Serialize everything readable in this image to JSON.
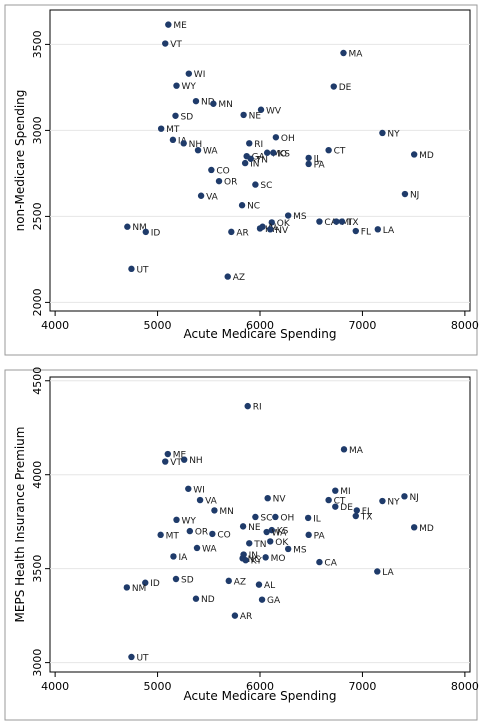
{
  "chart_data": [
    {
      "type": "scatter",
      "title": "",
      "xlabel": "Acute Medicare Spending",
      "ylabel": "non-Medicare Spending",
      "xlim": [
        3950,
        8050
      ],
      "ylim": [
        1950,
        3700
      ],
      "xticks": [
        4000,
        5000,
        6000,
        7000,
        8000
      ],
      "yticks": [
        2000,
        2500,
        3000,
        3500
      ],
      "grid": true,
      "marker_color": "#1f3b6a",
      "points": [
        {
          "label": "ME",
          "x": 5105,
          "y": 3615
        },
        {
          "label": "VT",
          "x": 5075,
          "y": 3505
        },
        {
          "label": "MA",
          "x": 6815,
          "y": 3450
        },
        {
          "label": "WI",
          "x": 5305,
          "y": 3330
        },
        {
          "label": "WY",
          "x": 5185,
          "y": 3260
        },
        {
          "label": "DE",
          "x": 6720,
          "y": 3255
        },
        {
          "label": "ND",
          "x": 5375,
          "y": 3170
        },
        {
          "label": "MN",
          "x": 5545,
          "y": 3155
        },
        {
          "label": "WV",
          "x": 6010,
          "y": 3120
        },
        {
          "label": "NE",
          "x": 5840,
          "y": 3090
        },
        {
          "label": "SD",
          "x": 5175,
          "y": 3085
        },
        {
          "label": "MT",
          "x": 5035,
          "y": 3010
        },
        {
          "label": "NY",
          "x": 7195,
          "y": 2985
        },
        {
          "label": "OH",
          "x": 6155,
          "y": 2960
        },
        {
          "label": "IA",
          "x": 5150,
          "y": 2945
        },
        {
          "label": "NH",
          "x": 5255,
          "y": 2925
        },
        {
          "label": "RI",
          "x": 5895,
          "y": 2925
        },
        {
          "label": "WA",
          "x": 5395,
          "y": 2885
        },
        {
          "label": "CT",
          "x": 6670,
          "y": 2885
        },
        {
          "label": "MD",
          "x": 7505,
          "y": 2860
        },
        {
          "label": "MO",
          "x": 6070,
          "y": 2870
        },
        {
          "label": "KS",
          "x": 6130,
          "y": 2870
        },
        {
          "label": "GA",
          "x": 5870,
          "y": 2850
        },
        {
          "label": "IL",
          "x": 6475,
          "y": 2840
        },
        {
          "label": "IN",
          "x": 5855,
          "y": 2810
        },
        {
          "label": "TN",
          "x": 5910,
          "y": 2835
        },
        {
          "label": "PA",
          "x": 6475,
          "y": 2805
        },
        {
          "label": "CO",
          "x": 5525,
          "y": 2770
        },
        {
          "label": "OR",
          "x": 5600,
          "y": 2705
        },
        {
          "label": "SC",
          "x": 5955,
          "y": 2685
        },
        {
          "label": "VA",
          "x": 5425,
          "y": 2620
        },
        {
          "label": "NJ",
          "x": 7415,
          "y": 2630
        },
        {
          "label": "NC",
          "x": 5825,
          "y": 2565
        },
        {
          "label": "MS",
          "x": 6275,
          "y": 2505
        },
        {
          "label": "CA",
          "x": 6580,
          "y": 2470
        },
        {
          "label": "MI",
          "x": 6745,
          "y": 2470
        },
        {
          "label": "TX",
          "x": 6800,
          "y": 2470
        },
        {
          "label": "OK",
          "x": 6115,
          "y": 2465
        },
        {
          "label": "AL",
          "x": 6025,
          "y": 2440
        },
        {
          "label": "KY",
          "x": 6000,
          "y": 2430
        },
        {
          "label": "NV",
          "x": 6100,
          "y": 2425
        },
        {
          "label": "NM",
          "x": 4705,
          "y": 2440
        },
        {
          "label": "ID",
          "x": 4885,
          "y": 2410
        },
        {
          "label": "AR",
          "x": 5720,
          "y": 2410
        },
        {
          "label": "FL",
          "x": 6935,
          "y": 2415
        },
        {
          "label": "LA",
          "x": 7150,
          "y": 2425
        },
        {
          "label": "UT",
          "x": 4745,
          "y": 2195
        },
        {
          "label": "AZ",
          "x": 5685,
          "y": 2150
        }
      ]
    },
    {
      "type": "scatter",
      "title": "",
      "xlabel": "Acute Medicare Spending",
      "ylabel": "MEPS Health Insurance Premium",
      "xlim": [
        3950,
        8050
      ],
      "ylim": [
        2950,
        4520
      ],
      "xticks": [
        4000,
        5000,
        6000,
        7000,
        8000
      ],
      "yticks": [
        3000,
        3500,
        4000,
        4500
      ],
      "grid": true,
      "marker_color": "#1f3b6a",
      "points": [
        {
          "label": "RI",
          "x": 5880,
          "y": 4365
        },
        {
          "label": "MA",
          "x": 6820,
          "y": 4135
        },
        {
          "label": "ME",
          "x": 5100,
          "y": 4110
        },
        {
          "label": "NH",
          "x": 5260,
          "y": 4080
        },
        {
          "label": "VT",
          "x": 5075,
          "y": 4070
        },
        {
          "label": "WI",
          "x": 5300,
          "y": 3925
        },
        {
          "label": "MI",
          "x": 6735,
          "y": 3915
        },
        {
          "label": "NJ",
          "x": 7410,
          "y": 3885
        },
        {
          "label": "NV",
          "x": 6075,
          "y": 3875
        },
        {
          "label": "VA",
          "x": 5415,
          "y": 3865
        },
        {
          "label": "CT",
          "x": 6670,
          "y": 3865
        },
        {
          "label": "NY",
          "x": 7195,
          "y": 3860
        },
        {
          "label": "DE",
          "x": 6735,
          "y": 3830
        },
        {
          "label": "FL",
          "x": 6945,
          "y": 3810
        },
        {
          "label": "MN",
          "x": 5555,
          "y": 3810
        },
        {
          "label": "SC",
          "x": 5955,
          "y": 3775
        },
        {
          "label": "OH",
          "x": 6150,
          "y": 3775
        },
        {
          "label": "IL",
          "x": 6470,
          "y": 3770
        },
        {
          "label": "TX",
          "x": 6935,
          "y": 3780
        },
        {
          "label": "WY",
          "x": 5185,
          "y": 3760
        },
        {
          "label": "NE",
          "x": 5835,
          "y": 3725
        },
        {
          "label": "MD",
          "x": 7505,
          "y": 3720
        },
        {
          "label": "KS",
          "x": 6115,
          "y": 3705
        },
        {
          "label": "WA",
          "x": 6065,
          "y": 3695
        },
        {
          "label": "OR",
          "x": 5315,
          "y": 3700
        },
        {
          "label": "CO",
          "x": 5535,
          "y": 3685
        },
        {
          "label": "MT",
          "x": 5030,
          "y": 3680
        },
        {
          "label": "PA",
          "x": 6475,
          "y": 3680
        },
        {
          "label": "OK",
          "x": 6100,
          "y": 3645
        },
        {
          "label": "TN",
          "x": 5895,
          "y": 3635
        },
        {
          "label": "WA",
          "x": 5385,
          "y": 3610
        },
        {
          "label": "MS",
          "x": 6275,
          "y": 3605
        },
        {
          "label": "IA",
          "x": 5155,
          "y": 3565
        },
        {
          "label": "MO",
          "x": 6055,
          "y": 3560
        },
        {
          "label": "NC",
          "x": 5830,
          "y": 3555
        },
        {
          "label": "KY",
          "x": 5860,
          "y": 3545
        },
        {
          "label": "IN",
          "x": 5840,
          "y": 3575
        },
        {
          "label": "CA",
          "x": 6580,
          "y": 3535
        },
        {
          "label": "LA",
          "x": 7145,
          "y": 3485
        },
        {
          "label": "SD",
          "x": 5180,
          "y": 3445
        },
        {
          "label": "AZ",
          "x": 5695,
          "y": 3435
        },
        {
          "label": "AL",
          "x": 5990,
          "y": 3415
        },
        {
          "label": "ID",
          "x": 4880,
          "y": 3425
        },
        {
          "label": "NM",
          "x": 4700,
          "y": 3400
        },
        {
          "label": "ND",
          "x": 5375,
          "y": 3340
        },
        {
          "label": "GA",
          "x": 6020,
          "y": 3335
        },
        {
          "label": "AR",
          "x": 5755,
          "y": 3250
        },
        {
          "label": "UT",
          "x": 4745,
          "y": 3030
        }
      ]
    }
  ]
}
